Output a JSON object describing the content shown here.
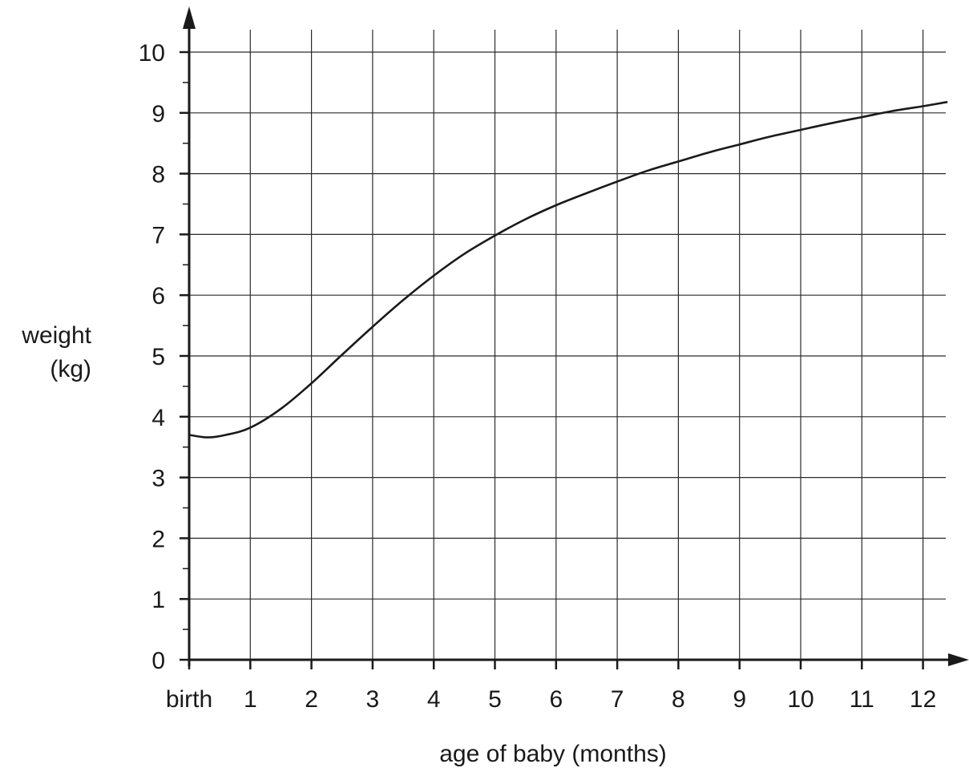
{
  "chart_data": {
    "type": "line",
    "title": "",
    "xlabel": "age of baby (months)",
    "ylabel_lines": [
      "weight",
      "(kg)"
    ],
    "xlim": [
      0,
      12.4
    ],
    "ylim": [
      0,
      10
    ],
    "x_ticks": [
      0,
      1,
      2,
      3,
      4,
      5,
      6,
      7,
      8,
      9,
      10,
      11,
      12
    ],
    "x_tick_labels": [
      "birth",
      "1",
      "2",
      "3",
      "4",
      "5",
      "6",
      "7",
      "8",
      "9",
      "10",
      "11",
      "12"
    ],
    "y_ticks": [
      0,
      1,
      2,
      3,
      4,
      5,
      6,
      7,
      8,
      9,
      10
    ],
    "y_tick_labels": [
      "0",
      "1",
      "2",
      "3",
      "4",
      "5",
      "6",
      "7",
      "8",
      "9",
      "10"
    ],
    "y_minor_step": 0.5,
    "grid": true,
    "series": [
      {
        "name": "",
        "x": [
          0,
          0.3,
          0.6,
          1,
          1.5,
          2,
          2.5,
          3,
          3.5,
          4,
          4.5,
          5,
          5.5,
          6,
          6.5,
          7,
          7.5,
          8,
          8.5,
          9,
          9.5,
          10,
          10.5,
          11,
          11.5,
          12,
          12.4
        ],
        "y": [
          3.7,
          3.66,
          3.7,
          3.82,
          4.13,
          4.55,
          5.02,
          5.48,
          5.92,
          6.32,
          6.68,
          6.98,
          7.25,
          7.48,
          7.68,
          7.87,
          8.05,
          8.2,
          8.35,
          8.48,
          8.61,
          8.72,
          8.83,
          8.93,
          9.03,
          9.11,
          9.18
        ]
      }
    ]
  }
}
